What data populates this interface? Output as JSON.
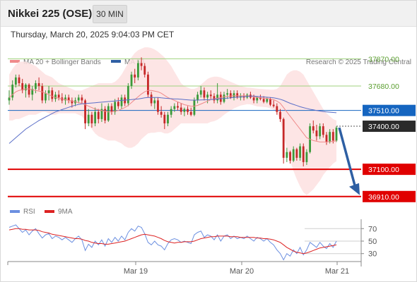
{
  "header": {
    "title": "Nikkei 225 (OSE)",
    "interval": "30 MIN",
    "timestamp": "Thursday, March 20, 2025 9:04:03 PM CET"
  },
  "legend": {
    "ma20_label": "MA 20 + Bollinger Bands",
    "ma50_label": "MA 50",
    "credit": "Research © 2025 Trading Central",
    "rsi_label": "RSI",
    "ma9_label": "9MA"
  },
  "colors": {
    "bull": "#3a9a3a",
    "bear": "#c62828",
    "band": "#fde0e0",
    "ma20": "#ef8a8a",
    "ma50": "#5b6fc8",
    "resistance": "#9fd27e",
    "support": "#e00000",
    "pivot": "#1565c0",
    "price": "#2a2a2a",
    "arrow": "#2e5fa3",
    "rsi": "#6b8fe0",
    "rsi_ma": "#dd2222"
  },
  "chart_data": [
    {
      "type": "candlestick",
      "title": "Nikkei 225 (OSE)",
      "interval": "30 MIN",
      "ylim": [
        36850,
        37980
      ],
      "x_labels": [
        "Mar 19",
        "Mar 20",
        "Mar 21"
      ],
      "levels": [
        {
          "label": "37870.00",
          "value": 37870,
          "kind": "resistance"
        },
        {
          "label": "37680.00",
          "value": 37680,
          "kind": "resistance"
        },
        {
          "label": "37510.00",
          "value": 37510,
          "kind": "pivot"
        },
        {
          "label": "37400.00",
          "value": 37400,
          "kind": "price"
        },
        {
          "label": "37100.00",
          "value": 37100,
          "kind": "support"
        },
        {
          "label": "36910.00",
          "value": 36910,
          "kind": "support"
        }
      ],
      "projection": {
        "from": 37390,
        "to": 36930
      },
      "ohlc": [
        [
          37580,
          37650,
          37550,
          37600
        ],
        [
          37600,
          37720,
          37580,
          37690
        ],
        [
          37690,
          37760,
          37670,
          37740
        ],
        [
          37740,
          37760,
          37680,
          37700
        ],
        [
          37700,
          37730,
          37630,
          37650
        ],
        [
          37650,
          37700,
          37600,
          37690
        ],
        [
          37690,
          37700,
          37600,
          37620
        ],
        [
          37620,
          37680,
          37580,
          37660
        ],
        [
          37660,
          37720,
          37630,
          37700
        ],
        [
          37700,
          37740,
          37650,
          37680
        ],
        [
          37680,
          37700,
          37560,
          37580
        ],
        [
          37580,
          37650,
          37560,
          37630
        ],
        [
          37630,
          37680,
          37580,
          37650
        ],
        [
          37650,
          37670,
          37570,
          37590
        ],
        [
          37590,
          37640,
          37570,
          37620
        ],
        [
          37620,
          37650,
          37580,
          37600
        ],
        [
          37600,
          37630,
          37560,
          37580
        ],
        [
          37580,
          37620,
          37550,
          37600
        ],
        [
          37600,
          37620,
          37560,
          37580
        ],
        [
          37580,
          37600,
          37530,
          37560
        ],
        [
          37560,
          37600,
          37540,
          37580
        ],
        [
          37580,
          37620,
          37560,
          37600
        ],
        [
          37600,
          37620,
          37560,
          37580
        ],
        [
          37580,
          37590,
          37380,
          37420
        ],
        [
          37420,
          37520,
          37400,
          37480
        ],
        [
          37480,
          37500,
          37390,
          37420
        ],
        [
          37420,
          37530,
          37400,
          37500
        ],
        [
          37500,
          37520,
          37420,
          37450
        ],
        [
          37450,
          37560,
          37430,
          37520
        ],
        [
          37520,
          37540,
          37420,
          37440
        ],
        [
          37440,
          37560,
          37430,
          37540
        ],
        [
          37540,
          37560,
          37480,
          37500
        ],
        [
          37500,
          37590,
          37480,
          37570
        ],
        [
          37570,
          37600,
          37520,
          37540
        ],
        [
          37540,
          37620,
          37520,
          37600
        ],
        [
          37600,
          37620,
          37540,
          37560
        ],
        [
          37560,
          37700,
          37540,
          37680
        ],
        [
          37680,
          37780,
          37660,
          37760
        ],
        [
          37760,
          37800,
          37700,
          37740
        ],
        [
          37740,
          37860,
          37720,
          37840
        ],
        [
          37840,
          37880,
          37790,
          37820
        ],
        [
          37820,
          37840,
          37740,
          37760
        ],
        [
          37760,
          37780,
          37600,
          37620
        ],
        [
          37620,
          37640,
          37540,
          37560
        ],
        [
          37560,
          37600,
          37520,
          37580
        ],
        [
          37580,
          37600,
          37480,
          37500
        ],
        [
          37500,
          37540,
          37460,
          37480
        ],
        [
          37480,
          37500,
          37380,
          37420
        ],
        [
          37420,
          37500,
          37400,
          37480
        ],
        [
          37480,
          37540,
          37460,
          37520
        ],
        [
          37520,
          37560,
          37500,
          37540
        ],
        [
          37540,
          37570,
          37510,
          37530
        ],
        [
          37530,
          37560,
          37480,
          37500
        ],
        [
          37500,
          37530,
          37470,
          37520
        ],
        [
          37520,
          37540,
          37480,
          37500
        ],
        [
          37500,
          37530,
          37470,
          37480
        ],
        [
          37480,
          37600,
          37470,
          37580
        ],
        [
          37580,
          37640,
          37560,
          37620
        ],
        [
          37620,
          37680,
          37600,
          37650
        ],
        [
          37650,
          37670,
          37580,
          37600
        ],
        [
          37600,
          37640,
          37560,
          37620
        ],
        [
          37620,
          37650,
          37590,
          37610
        ],
        [
          37610,
          37630,
          37560,
          37580
        ],
        [
          37580,
          37700,
          37560,
          37620
        ],
        [
          37620,
          37640,
          37550,
          37570
        ],
        [
          37570,
          37640,
          37560,
          37620
        ],
        [
          37620,
          37660,
          37590,
          37630
        ],
        [
          37630,
          37650,
          37590,
          37600
        ],
        [
          37600,
          37650,
          37580,
          37630
        ],
        [
          37630,
          37650,
          37590,
          37600
        ],
        [
          37600,
          37630,
          37580,
          37610
        ],
        [
          37610,
          37630,
          37580,
          37600
        ],
        [
          37600,
          37630,
          37590,
          37620
        ],
        [
          37620,
          37640,
          37590,
          37600
        ],
        [
          37600,
          37620,
          37560,
          37580
        ],
        [
          37580,
          37610,
          37560,
          37600
        ],
        [
          37600,
          37620,
          37580,
          37590
        ],
        [
          37590,
          37610,
          37560,
          37570
        ],
        [
          37570,
          37600,
          37560,
          37590
        ],
        [
          37590,
          37600,
          37540,
          37550
        ],
        [
          37550,
          37580,
          37530,
          37540
        ],
        [
          37540,
          37560,
          37480,
          37500
        ],
        [
          37500,
          37520,
          37430,
          37450
        ],
        [
          37450,
          37460,
          37140,
          37180
        ],
        [
          37180,
          37250,
          37150,
          37220
        ],
        [
          37220,
          37230,
          37140,
          37160
        ],
        [
          37160,
          37260,
          37150,
          37240
        ],
        [
          37240,
          37250,
          37160,
          37180
        ],
        [
          37180,
          37280,
          37160,
          37260
        ],
        [
          37260,
          37280,
          37120,
          37150
        ],
        [
          37150,
          37240,
          37130,
          37220
        ],
        [
          37220,
          37420,
          37210,
          37400
        ],
        [
          37400,
          37440,
          37350,
          37370
        ],
        [
          37370,
          37410,
          37300,
          37330
        ],
        [
          37330,
          37420,
          37310,
          37400
        ],
        [
          37400,
          37420,
          37320,
          37340
        ],
        [
          37340,
          37360,
          37270,
          37290
        ],
        [
          37290,
          37380,
          37280,
          37360
        ],
        [
          37360,
          37380,
          37280,
          37300
        ],
        [
          37300,
          37400,
          37290,
          37390
        ]
      ],
      "ma20": [
        37600,
        37620,
        37640,
        37650,
        37655,
        37660,
        37660,
        37655,
        37650,
        37645,
        37640,
        37630,
        37620,
        37610,
        37600,
        37595,
        37590,
        37585,
        37580,
        37575,
        37570,
        37565,
        37560,
        37550,
        37540,
        37530,
        37520,
        37515,
        37510,
        37505,
        37500,
        37500,
        37505,
        37510,
        37520,
        37530,
        37545,
        37565,
        37585,
        37605,
        37625,
        37640,
        37650,
        37650,
        37645,
        37640,
        37630,
        37615,
        37600,
        37590,
        37580,
        37570,
        37560,
        37550,
        37545,
        37540,
        37540,
        37545,
        37555,
        37565,
        37575,
        37585,
        37590,
        37595,
        37600,
        37605,
        37608,
        37610,
        37612,
        37612,
        37612,
        37612,
        37612,
        37610,
        37605,
        37600,
        37598,
        37596,
        37594,
        37590,
        37585,
        37575,
        37560,
        37530,
        37500,
        37470,
        37440,
        37410,
        37380,
        37350,
        37320,
        37310,
        37300,
        37295,
        37290,
        37290,
        37290,
        37292,
        37295,
        37298
      ],
      "bb_upper": [
        37760,
        37800,
        37830,
        37850,
        37850,
        37850,
        37840,
        37830,
        37820,
        37800,
        37780,
        37760,
        37750,
        37740,
        37720,
        37700,
        37690,
        37680,
        37670,
        37660,
        37650,
        37650,
        37650,
        37660,
        37670,
        37680,
        37690,
        37700,
        37700,
        37700,
        37700,
        37700,
        37710,
        37730,
        37760,
        37800,
        37840,
        37880,
        37910,
        37930,
        37940,
        37950,
        37950,
        37945,
        37935,
        37920,
        37900,
        37880,
        37850,
        37820,
        37780,
        37740,
        37700,
        37680,
        37670,
        37660,
        37660,
        37670,
        37690,
        37710,
        37730,
        37740,
        37745,
        37745,
        37740,
        37730,
        37720,
        37710,
        37700,
        37690,
        37680,
        37675,
        37670,
        37668,
        37665,
        37662,
        37660,
        37658,
        37656,
        37655,
        37655,
        37660,
        37680,
        37720,
        37760,
        37780,
        37790,
        37790,
        37780,
        37760,
        37720,
        37680,
        37640,
        37600,
        37560,
        37520,
        37490,
        37470,
        37450,
        37440
      ],
      "bb_lower": [
        37440,
        37440,
        37450,
        37450,
        37460,
        37470,
        37480,
        37480,
        37480,
        37490,
        37500,
        37500,
        37490,
        37480,
        37480,
        37490,
        37490,
        37490,
        37490,
        37490,
        37490,
        37480,
        37470,
        37440,
        37410,
        37380,
        37350,
        37330,
        37320,
        37310,
        37300,
        37300,
        37300,
        37290,
        37280,
        37260,
        37250,
        37250,
        37260,
        37280,
        37310,
        37330,
        37350,
        37355,
        37355,
        37360,
        37360,
        37350,
        37350,
        37360,
        37380,
        37400,
        37420,
        37420,
        37420,
        37420,
        37420,
        37420,
        37420,
        37420,
        37420,
        37430,
        37435,
        37445,
        37460,
        37480,
        37496,
        37510,
        37524,
        37534,
        37544,
        37549,
        37554,
        37552,
        37545,
        37538,
        37536,
        37534,
        37532,
        37525,
        37515,
        37490,
        37440,
        37340,
        37240,
        37160,
        37090,
        37030,
        36980,
        36940,
        36920,
        36940,
        36960,
        36990,
        37020,
        37060,
        37090,
        37114,
        37140,
        37156
      ],
      "ma50": [
        37280,
        37300,
        37320,
        37340,
        37360,
        37380,
        37395,
        37410,
        37425,
        37440,
        37452,
        37464,
        37476,
        37488,
        37500,
        37508,
        37516,
        37524,
        37532,
        37540,
        37546,
        37552,
        37556,
        37558,
        37560,
        37562,
        37564,
        37566,
        37568,
        37570,
        37572,
        37574,
        37576,
        37578,
        37580,
        37582,
        37584,
        37586,
        37588,
        37590,
        37594,
        37598,
        37600,
        37600,
        37600,
        37600,
        37598,
        37596,
        37594,
        37592,
        37590,
        37590,
        37588,
        37586,
        37584,
        37582,
        37582,
        37582,
        37583,
        37584,
        37585,
        37586,
        37588,
        37590,
        37592,
        37594,
        37596,
        37598,
        37600,
        37602,
        37604,
        37606,
        37608,
        37610,
        37610,
        37608,
        37606,
        37604,
        37602,
        37600,
        37598,
        37594,
        37588,
        37580,
        37570,
        37560,
        37552,
        37544,
        37536,
        37530,
        37524,
        37518,
        37514,
        37510,
        37506,
        37502,
        37500,
        37498,
        37496,
        37494
      ]
    },
    {
      "type": "line",
      "series": [
        {
          "name": "RSI"
        },
        {
          "name": "9MA"
        }
      ],
      "ylim": [
        15,
        85
      ],
      "y_ticks": [
        70,
        50,
        30
      ],
      "rsi": [
        72,
        74,
        76,
        70,
        64,
        68,
        60,
        66,
        70,
        62,
        55,
        60,
        62,
        54,
        58,
        56,
        52,
        56,
        52,
        48,
        54,
        58,
        52,
        35,
        45,
        40,
        50,
        44,
        52,
        42,
        54,
        48,
        56,
        50,
        58,
        52,
        64,
        70,
        66,
        74,
        72,
        62,
        48,
        44,
        50,
        44,
        42,
        36,
        46,
        52,
        54,
        52,
        48,
        50,
        48,
        46,
        60,
        64,
        66,
        56,
        60,
        58,
        52,
        60,
        50,
        58,
        60,
        54,
        58,
        54,
        56,
        54,
        58,
        54,
        50,
        56,
        54,
        50,
        54,
        48,
        44,
        36,
        30,
        20,
        30,
        26,
        36,
        30,
        40,
        28,
        36,
        48,
        44,
        40,
        48,
        42,
        38,
        46,
        40,
        50
      ],
      "rsi_ma": [
        68,
        69,
        70,
        70,
        69,
        69,
        68,
        68,
        68,
        67,
        65,
        64,
        63,
        61,
        60,
        59,
        58,
        57,
        56,
        55,
        54,
        54,
        53,
        51,
        50,
        48,
        47,
        46,
        46,
        45,
        45,
        46,
        47,
        48,
        49,
        50,
        52,
        54,
        56,
        58,
        60,
        61,
        60,
        59,
        58,
        56,
        54,
        51,
        49,
        48,
        47,
        48,
        48,
        49,
        49,
        49,
        50,
        52,
        54,
        55,
        56,
        57,
        57,
        58,
        58,
        58,
        58,
        57,
        57,
        57,
        56,
        56,
        56,
        56,
        56,
        55,
        55,
        54,
        54,
        53,
        52,
        50,
        48,
        44,
        40,
        37,
        34,
        32,
        31,
        30,
        31,
        33,
        35,
        37,
        39,
        40,
        41,
        42,
        43,
        44
      ]
    }
  ]
}
